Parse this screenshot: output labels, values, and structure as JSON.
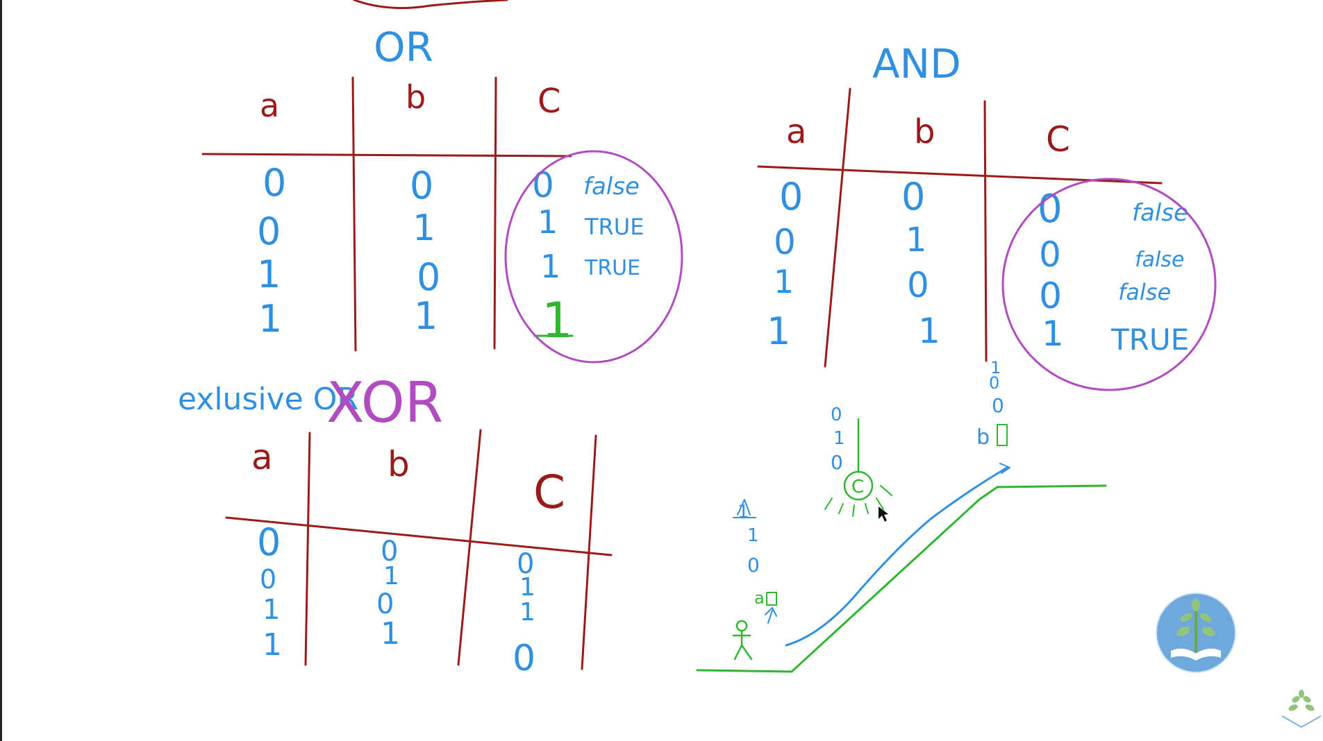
{
  "or_table": {
    "title": "OR",
    "headers": [
      "a",
      "b",
      "C"
    ],
    "rows": [
      {
        "a": "0",
        "b": "0",
        "c": "0",
        "note": "false"
      },
      {
        "a": "0",
        "b": "1",
        "c": "1",
        "note": "TRUE"
      },
      {
        "a": "1",
        "b": "0",
        "c": "1",
        "note": "TRUE"
      },
      {
        "a": "1",
        "b": "1",
        "c": "1",
        "note": ""
      }
    ]
  },
  "and_table": {
    "title": "AND",
    "headers": [
      "a",
      "b",
      "C"
    ],
    "rows": [
      {
        "a": "0",
        "b": "0",
        "c": "0",
        "note": "false"
      },
      {
        "a": "0",
        "b": "1",
        "c": "0",
        "note": "false"
      },
      {
        "a": "1",
        "b": "0",
        "c": "0",
        "note": "false"
      },
      {
        "a": "1",
        "b": "1",
        "c": "1",
        "note": "TRUE"
      }
    ]
  },
  "xor_table": {
    "subtitle": "exlusive OR",
    "title": "XOR",
    "headers": [
      "a",
      "b",
      "C"
    ],
    "rows": [
      {
        "a": "0",
        "b": "0",
        "c": "0"
      },
      {
        "a": "0",
        "b": "1",
        "c": "1"
      },
      {
        "a": "1",
        "b": "0",
        "c": "1"
      },
      {
        "a": "1",
        "b": "1",
        "c": "0"
      }
    ]
  },
  "sketch": {
    "a_bits": [
      "1",
      "1",
      "0"
    ],
    "a_label": "a",
    "c_bits": [
      "0",
      "1",
      "0"
    ],
    "c_label": "C",
    "b_bits": [
      "1",
      "0",
      "0"
    ],
    "b_label": "b"
  },
  "colors": {
    "ink_blue": "#2f8fe0",
    "ink_red": "#9a1a1a",
    "ink_purple": "#b04bc0",
    "ink_green": "#2fb52f",
    "logo_bg": "#6fa8dc"
  }
}
